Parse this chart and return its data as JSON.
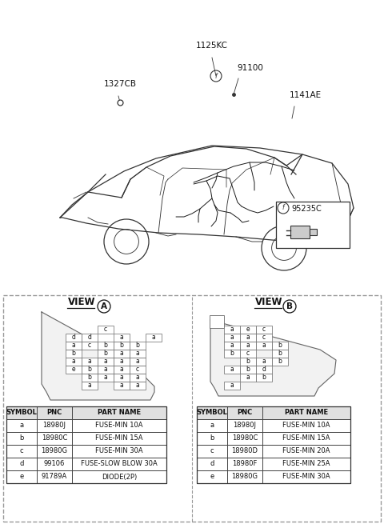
{
  "bg_color": "#ffffff",
  "line_color": "#333333",
  "part_labels": [
    "91100",
    "1125KC",
    "1327CB",
    "1141AE"
  ],
  "connector_label": "95235C",
  "table_a_headers": [
    "SYMBOL",
    "PNC",
    "PART NAME"
  ],
  "table_a_rows": [
    [
      "a",
      "18980J",
      "FUSE-MIN 10A"
    ],
    [
      "b",
      "18980C",
      "FUSE-MIN 15A"
    ],
    [
      "c",
      "18980G",
      "FUSE-MIN 30A"
    ],
    [
      "d",
      "99106",
      "FUSE-SLOW BLOW 30A"
    ],
    [
      "e",
      "91789A",
      "DIODE(2P)"
    ]
  ],
  "table_b_headers": [
    "SYMBOL",
    "PNC",
    "PART NAME"
  ],
  "table_b_rows": [
    [
      "a",
      "18980J",
      "FUSE-MIN 10A"
    ],
    [
      "b",
      "18980C",
      "FUSE-MIN 15A"
    ],
    [
      "c",
      "18980D",
      "FUSE-MIN 20A"
    ],
    [
      "d",
      "18980F",
      "FUSE-MIN 25A"
    ],
    [
      "e",
      "18980G",
      "FUSE-MIN 30A"
    ]
  ],
  "cells_a": [
    [
      [
        2,
        0,
        "c"
      ]
    ],
    [
      [
        0,
        1,
        "d"
      ],
      [
        1,
        1,
        "d"
      ],
      [
        3,
        1,
        "a"
      ],
      [
        5,
        1,
        "a"
      ]
    ],
    [
      [
        0,
        2,
        "a"
      ],
      [
        1,
        2,
        "c"
      ],
      [
        2,
        2,
        "b"
      ],
      [
        3,
        2,
        "b"
      ],
      [
        4,
        2,
        "b"
      ]
    ],
    [
      [
        0,
        3,
        "b"
      ],
      [
        2,
        3,
        "b"
      ],
      [
        3,
        3,
        "a"
      ],
      [
        4,
        3,
        "a"
      ]
    ],
    [
      [
        0,
        4,
        "a"
      ],
      [
        1,
        4,
        "a"
      ],
      [
        2,
        4,
        "a"
      ],
      [
        3,
        4,
        "a"
      ],
      [
        4,
        4,
        "a"
      ]
    ],
    [
      [
        0,
        5,
        "e"
      ],
      [
        1,
        5,
        "b"
      ],
      [
        2,
        5,
        "a"
      ],
      [
        3,
        5,
        "a"
      ],
      [
        4,
        5,
        "c"
      ]
    ],
    [
      [
        1,
        6,
        "b"
      ],
      [
        2,
        6,
        "a"
      ],
      [
        3,
        6,
        "a"
      ],
      [
        4,
        6,
        "a"
      ]
    ],
    [
      [
        1,
        7,
        "a"
      ],
      [
        3,
        7,
        "a"
      ],
      [
        4,
        7,
        "a"
      ]
    ]
  ],
  "cells_b": [
    [
      [
        0,
        0,
        "a"
      ],
      [
        1,
        0,
        "e"
      ],
      [
        2,
        0,
        "c"
      ]
    ],
    [
      [
        0,
        1,
        "a"
      ],
      [
        1,
        1,
        "a"
      ],
      [
        2,
        1,
        "c"
      ]
    ],
    [
      [
        0,
        2,
        "a"
      ],
      [
        1,
        2,
        "a"
      ],
      [
        2,
        2,
        "a"
      ],
      [
        3,
        2,
        "b"
      ]
    ],
    [
      [
        0,
        3,
        "b"
      ],
      [
        1,
        3,
        "c"
      ],
      [
        3,
        3,
        "b"
      ]
    ],
    [
      [
        1,
        4,
        "b"
      ],
      [
        2,
        4,
        "a"
      ],
      [
        3,
        4,
        "b"
      ]
    ],
    [
      [
        0,
        5,
        "a"
      ],
      [
        1,
        5,
        "b"
      ],
      [
        2,
        5,
        "d"
      ]
    ],
    [
      [
        1,
        6,
        "a"
      ],
      [
        2,
        6,
        "b"
      ]
    ],
    [
      [
        0,
        7,
        "a"
      ]
    ]
  ]
}
